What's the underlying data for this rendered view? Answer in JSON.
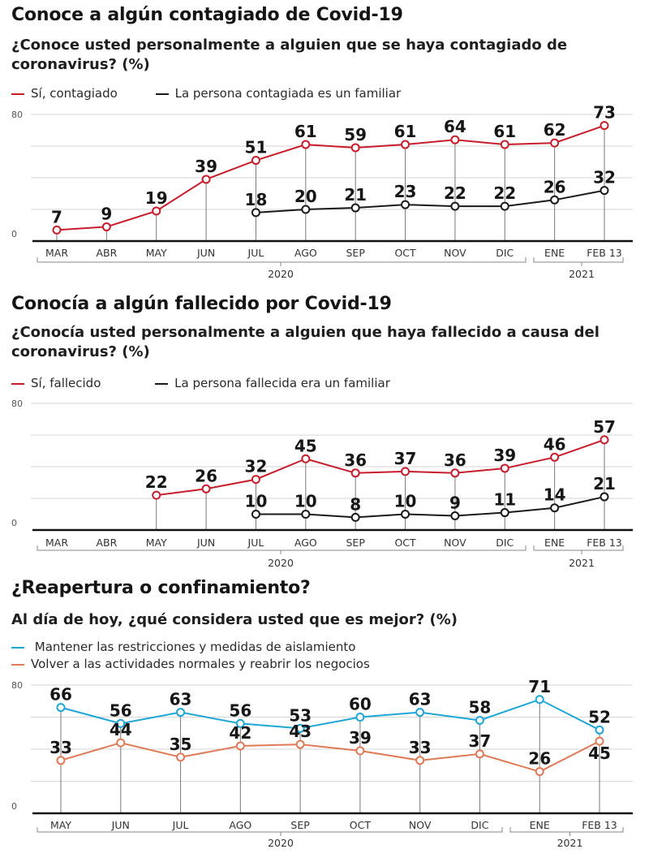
{
  "colors": {
    "red": "#c81d2a",
    "black": "#1a1a1a",
    "blue": "#1ea6d6",
    "orange": "#e07a55",
    "grid": "#d6d6d6",
    "drop": "#7a7a7a"
  },
  "sections": [
    {
      "title": "Conoce a algún contagiado de Covid-19",
      "subtitle": "¿Conoce usted personalmente a alguien que se haya contagiado de coronavirus?  (%)",
      "legend": [
        {
          "label": "Sí, contagiado",
          "color_key": "red"
        },
        {
          "label": "La persona contagiada es un familiar",
          "color_key": "black"
        }
      ]
    },
    {
      "title": "Conocía a algún fallecido por Covid-19",
      "subtitle": "¿Conocía usted personalmente a alguien que haya fallecido a causa del coronavirus?  (%)",
      "legend": [
        {
          "label": "Sí, fallecido",
          "color_key": "red"
        },
        {
          "label": "La persona fallecida  era un familiar",
          "color_key": "black"
        }
      ]
    },
    {
      "title": "¿Reapertura o confinamiento?",
      "subtitle": "Al día de hoy, ¿qué considera usted que es mejor?  (%)",
      "legend": [
        {
          "label": " Mantener las restricciones y medidas de aislamiento",
          "color_key": "blue"
        },
        {
          "label": "Volver a las actividades normales y reabrir los negocios",
          "color_key": "orange"
        }
      ]
    }
  ],
  "chart_data": [
    {
      "type": "line",
      "title": "Conoce a algún contagiado de Covid-19",
      "ylabel": "%",
      "ylim": [
        0,
        80
      ],
      "yticks": [
        "0",
        "80"
      ],
      "grid": true,
      "categories": [
        "MAR",
        "ABR",
        "MAY",
        "JUN",
        "JUL",
        "AGO",
        "SEP",
        "OCT",
        "NOV",
        "DIC",
        "ENE",
        "FEB 13"
      ],
      "year_groups": [
        {
          "label": "2020",
          "from": 0,
          "to": 9
        },
        {
          "label": "2021",
          "from": 10,
          "to": 11
        }
      ],
      "series": [
        {
          "name": "Sí, contagiado",
          "color_key": "red",
          "values": [
            7,
            9,
            19,
            39,
            51,
            61,
            59,
            61,
            64,
            61,
            62,
            73
          ]
        },
        {
          "name": "La persona contagiada es un familiar",
          "color_key": "black",
          "values": [
            null,
            null,
            null,
            null,
            18,
            20,
            21,
            23,
            22,
            22,
            26,
            32
          ]
        }
      ]
    },
    {
      "type": "line",
      "title": "Conocía a algún fallecido por Covid-19",
      "ylabel": "%",
      "ylim": [
        0,
        80
      ],
      "yticks": [
        "0",
        "80"
      ],
      "grid": true,
      "categories": [
        "MAR",
        "ABR",
        "MAY",
        "JUN",
        "JUL",
        "AGO",
        "SEP",
        "OCT",
        "NOV",
        "DIC",
        "ENE",
        "FEB 13"
      ],
      "year_groups": [
        {
          "label": "2020",
          "from": 0,
          "to": 9
        },
        {
          "label": "2021",
          "from": 10,
          "to": 11
        }
      ],
      "series": [
        {
          "name": "Sí, fallecido",
          "color_key": "red",
          "values": [
            null,
            null,
            22,
            26,
            32,
            45,
            36,
            37,
            36,
            39,
            46,
            57
          ]
        },
        {
          "name": "La persona fallecida era un familiar",
          "color_key": "black",
          "values": [
            null,
            null,
            null,
            null,
            10,
            10,
            8,
            10,
            9,
            11,
            14,
            21
          ]
        }
      ]
    },
    {
      "type": "line",
      "title": "¿Reapertura o confinamiento?",
      "ylabel": "%",
      "ylim": [
        0,
        80
      ],
      "yticks": [
        "0",
        "80"
      ],
      "grid": true,
      "categories": [
        "MAY",
        "JUN",
        "JUL",
        "AGO",
        "SEP",
        "OCT",
        "NOV",
        "DIC",
        "ENE",
        "FEB 13"
      ],
      "year_groups": [
        {
          "label": "2020",
          "from": 0,
          "to": 7
        },
        {
          "label": "2021",
          "from": 8,
          "to": 9
        }
      ],
      "series": [
        {
          "name": "Mantener las restricciones y medidas de aislamiento",
          "color_key": "blue",
          "values": [
            66,
            56,
            63,
            56,
            53,
            60,
            63,
            58,
            71,
            52
          ]
        },
        {
          "name": "Volver a las actividades normales y reabrir los negocios",
          "color_key": "orange",
          "values": [
            33,
            44,
            35,
            42,
            43,
            39,
            33,
            37,
            26,
            45
          ]
        }
      ]
    }
  ]
}
